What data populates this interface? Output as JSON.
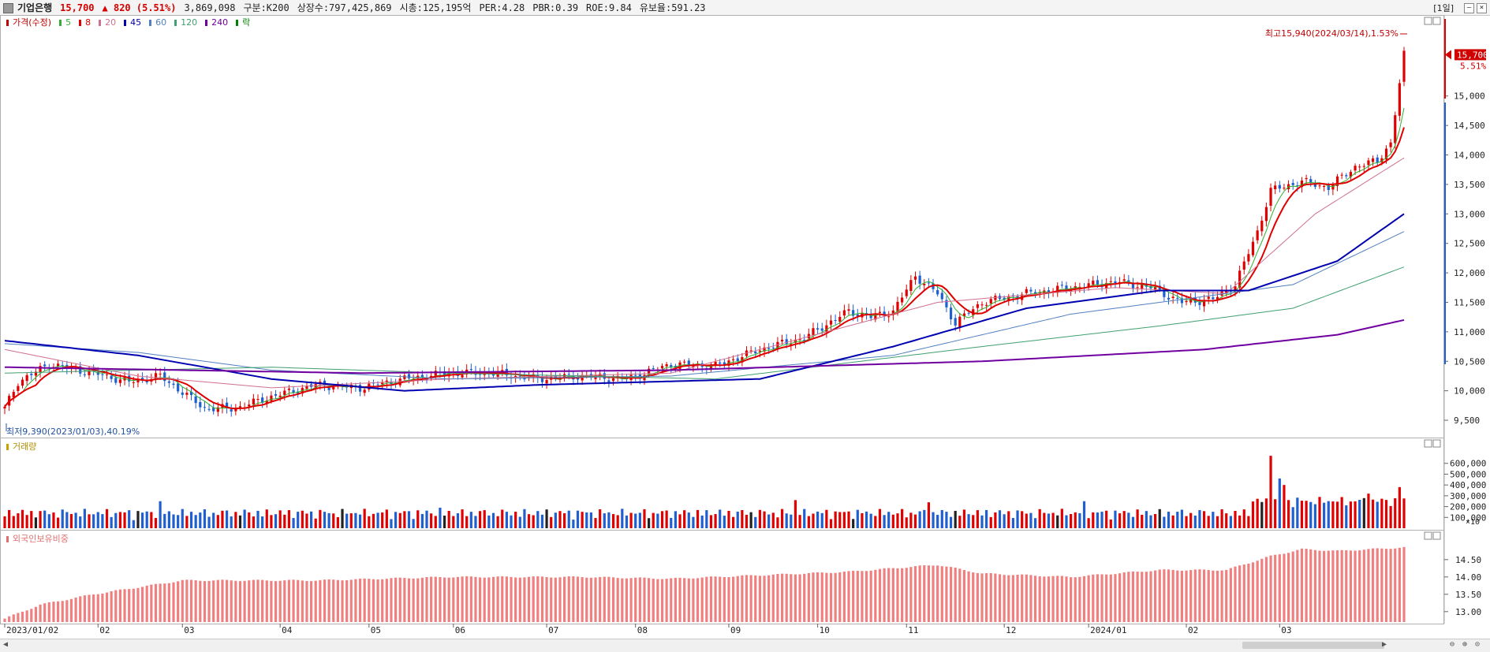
{
  "header": {
    "name": "기업은행",
    "price": "15,700",
    "change": "▲ 820 (5.51%)",
    "volume": "3,869,098",
    "segment": "구분:K200",
    "shares": "상장수:797,425,869",
    "mktcap": "시총:125,195억",
    "per": "PER:4.28",
    "pbr": "PBR:0.39",
    "roe": "ROE:9.84",
    "reserve": "유보율:591.23",
    "period": "[1일]"
  },
  "legend": {
    "items": [
      {
        "label": "가격(수정)",
        "color": "#c00000"
      },
      {
        "label": "5",
        "color": "#2fb02f"
      },
      {
        "label": "8",
        "color": "#e00000"
      },
      {
        "label": "20",
        "color": "#d07090"
      },
      {
        "label": "45",
        "color": "#0000b0"
      },
      {
        "label": "60",
        "color": "#5080c0"
      },
      {
        "label": "120",
        "color": "#40a070"
      },
      {
        "label": "240",
        "color": "#7000a0"
      },
      {
        "label": "락",
        "color": "#008000"
      }
    ],
    "volume": "거래량",
    "foreign": "외국인보유비중"
  },
  "annotations": {
    "high": "최고15,940(2024/03/14),1.53%",
    "low": "최저9,390(2023/01/03),40.19%",
    "last_price": "15,700",
    "last_pct": "5.51%",
    "vol_unit": "×10"
  },
  "chart_data": {
    "type": "candlestick",
    "x_labels": [
      "2023/01/02",
      "02",
      "03",
      "04",
      "05",
      "06",
      "07",
      "08",
      "09",
      "10",
      "11",
      "12",
      "2024/01",
      "02",
      "03"
    ],
    "price_ticks": [
      "15,000",
      "14,500",
      "14,000",
      "13,500",
      "13,000",
      "12,500",
      "12,000",
      "11,500",
      "11,000",
      "10,500",
      "10,000",
      "9,500"
    ],
    "price_range": [
      9300,
      16200
    ],
    "volume_ticks": [
      "600,000",
      "500,000",
      "400,000",
      "300,000",
      "200,000",
      "100,000"
    ],
    "volume_range": [
      0,
      700000
    ],
    "foreign_ticks": [
      "14.50",
      "14.00",
      "13.50",
      "13.00"
    ],
    "foreign_range": [
      12.7,
      14.95
    ],
    "price_anchors": [
      [
        0,
        9700
      ],
      [
        3,
        10150
      ],
      [
        10,
        10450
      ],
      [
        20,
        10300
      ],
      [
        28,
        10150
      ],
      [
        35,
        10250
      ],
      [
        45,
        9700
      ],
      [
        52,
        9700
      ],
      [
        60,
        9900
      ],
      [
        70,
        10100
      ],
      [
        80,
        10050
      ],
      [
        90,
        10200
      ],
      [
        100,
        10300
      ],
      [
        110,
        10300
      ],
      [
        120,
        10200
      ],
      [
        130,
        10250
      ],
      [
        140,
        10200
      ],
      [
        150,
        10450
      ],
      [
        160,
        10420
      ],
      [
        170,
        10700
      ],
      [
        180,
        10900
      ],
      [
        190,
        11350
      ],
      [
        195,
        11250
      ],
      [
        200,
        11350
      ],
      [
        205,
        11950
      ],
      [
        210,
        11650
      ],
      [
        214,
        11150
      ],
      [
        220,
        11500
      ],
      [
        230,
        11650
      ],
      [
        240,
        11750
      ],
      [
        250,
        11850
      ],
      [
        258,
        11750
      ],
      [
        265,
        11500
      ],
      [
        272,
        11550
      ],
      [
        277,
        11800
      ],
      [
        282,
        12700
      ],
      [
        285,
        13400
      ],
      [
        292,
        13550
      ],
      [
        298,
        13450
      ],
      [
        304,
        13800
      ],
      [
        309,
        13900
      ],
      [
        312,
        14200
      ],
      [
        315,
        15700
      ]
    ],
    "ma_anchors": {
      "ma20": [
        [
          0,
          10700
        ],
        [
          30,
          10250
        ],
        [
          60,
          10050
        ],
        [
          100,
          10200
        ],
        [
          150,
          10300
        ],
        [
          190,
          11100
        ],
        [
          210,
          11500
        ],
        [
          250,
          11750
        ],
        [
          275,
          11650
        ],
        [
          295,
          13000
        ],
        [
          315,
          13950
        ]
      ],
      "ma45": [
        [
          0,
          10850
        ],
        [
          30,
          10600
        ],
        [
          60,
          10200
        ],
        [
          90,
          10000
        ],
        [
          120,
          10100
        ],
        [
          170,
          10200
        ],
        [
          200,
          10750
        ],
        [
          230,
          11400
        ],
        [
          260,
          11700
        ],
        [
          280,
          11700
        ],
        [
          300,
          12200
        ],
        [
          315,
          13000
        ]
      ],
      "ma60": [
        [
          0,
          10800
        ],
        [
          30,
          10650
        ],
        [
          60,
          10350
        ],
        [
          100,
          10200
        ],
        [
          150,
          10250
        ],
        [
          200,
          10600
        ],
        [
          240,
          11300
        ],
        [
          270,
          11600
        ],
        [
          290,
          11800
        ],
        [
          315,
          12700
        ]
      ],
      "ma120": [
        [
          0,
          10300
        ],
        [
          60,
          10400
        ],
        [
          100,
          10300
        ],
        [
          160,
          10200
        ],
        [
          220,
          10750
        ],
        [
          260,
          11100
        ],
        [
          290,
          11400
        ],
        [
          315,
          12100
        ]
      ],
      "ma240": [
        [
          0,
          10400
        ],
        [
          80,
          10300
        ],
        [
          150,
          10350
        ],
        [
          220,
          10500
        ],
        [
          270,
          10700
        ],
        [
          300,
          10950
        ],
        [
          315,
          11200
        ]
      ]
    },
    "volume_spikes": [
      [
        35,
        250000
      ],
      [
        98,
        190000
      ],
      [
        178,
        260000
      ],
      [
        208,
        240000
      ],
      [
        243,
        250000
      ],
      [
        285,
        670000
      ],
      [
        287,
        460000
      ],
      [
        288,
        400000
      ],
      [
        307,
        320000
      ],
      [
        314,
        380000
      ]
    ],
    "foreign_anchors": [
      [
        0,
        12.8
      ],
      [
        8,
        13.2
      ],
      [
        20,
        13.5
      ],
      [
        40,
        13.9
      ],
      [
        70,
        13.9
      ],
      [
        100,
        14.0
      ],
      [
        130,
        14.0
      ],
      [
        150,
        13.95
      ],
      [
        170,
        14.05
      ],
      [
        190,
        14.15
      ],
      [
        210,
        14.35
      ],
      [
        220,
        14.1
      ],
      [
        240,
        14.0
      ],
      [
        260,
        14.2
      ],
      [
        275,
        14.2
      ],
      [
        285,
        14.6
      ],
      [
        292,
        14.8
      ],
      [
        300,
        14.75
      ],
      [
        315,
        14.85
      ]
    ]
  }
}
